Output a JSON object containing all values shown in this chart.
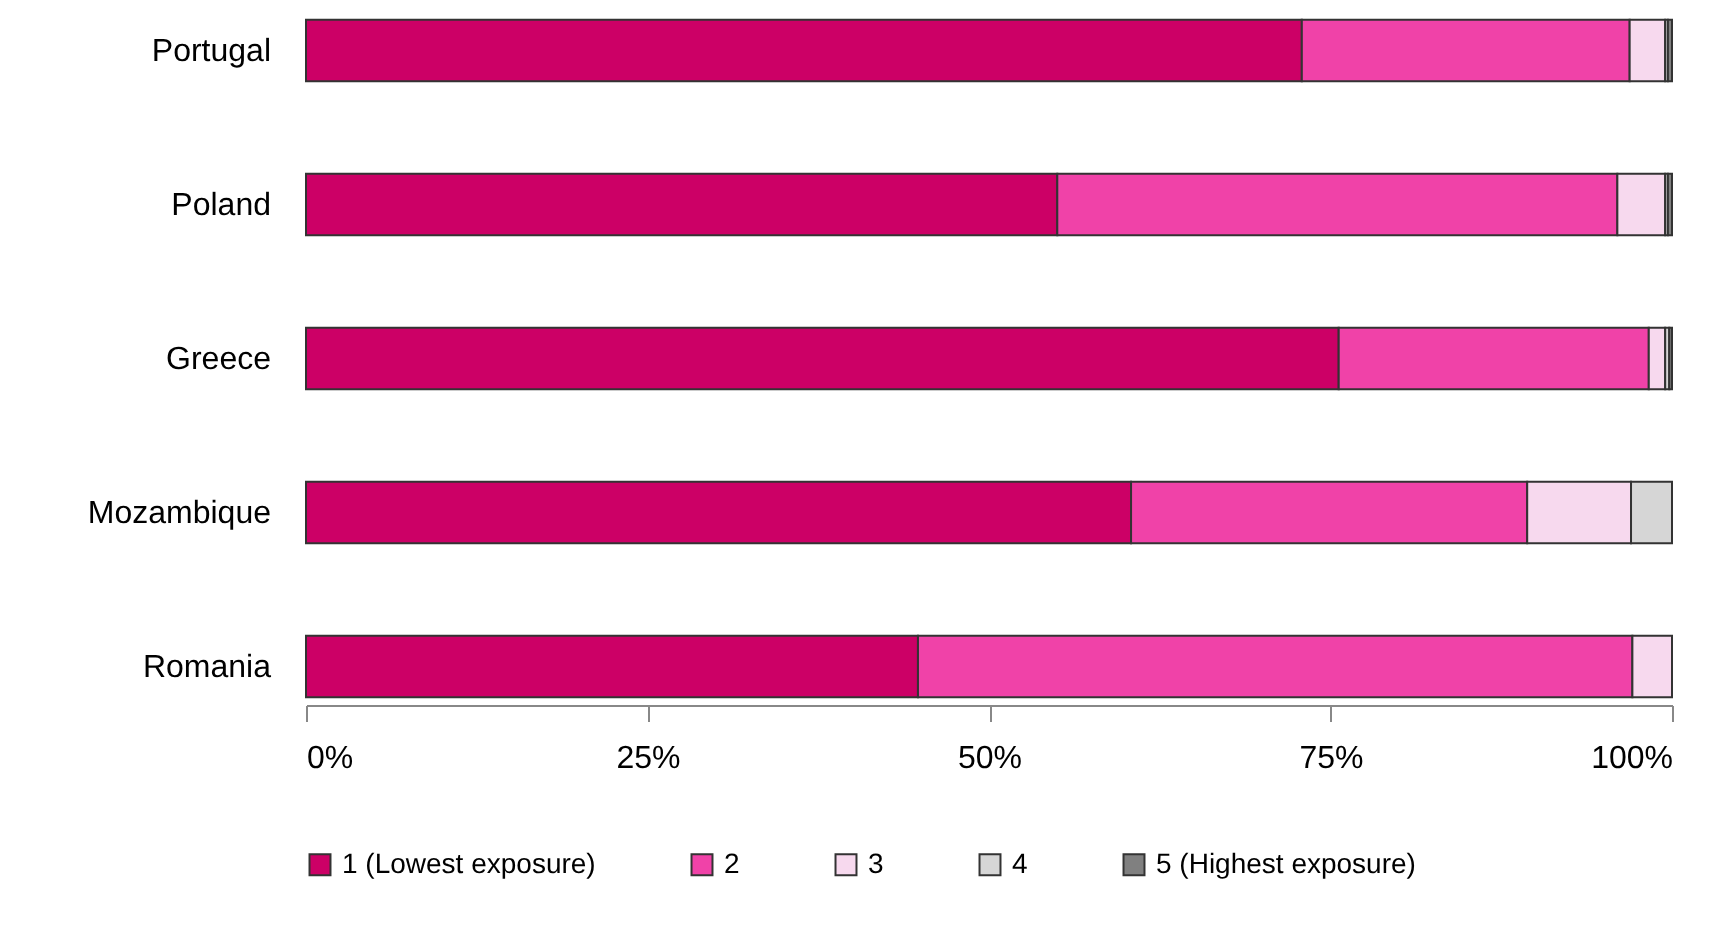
{
  "chart_data": {
    "type": "bar",
    "orientation": "horizontal",
    "stacked": true,
    "categories": [
      "Portugal",
      "Poland",
      "Greece",
      "Mozambique",
      "Romania"
    ],
    "series": [
      {
        "name": "1 (Lowest exposure)",
        "color": "#cc0066",
        "values": [
          72.9,
          55.0,
          75.6,
          60.4,
          44.8
        ]
      },
      {
        "name": "2",
        "color": "#f042a8",
        "values": [
          24.0,
          41.0,
          22.7,
          29.0,
          52.3
        ]
      },
      {
        "name": "3",
        "color": "#f7d9ee",
        "values": [
          2.6,
          3.5,
          1.2,
          7.6,
          2.9
        ]
      },
      {
        "name": "4",
        "color": "#d6d6d6",
        "values": [
          0.2,
          0.2,
          0.3,
          3.0,
          null
        ]
      },
      {
        "name": "5 (Highest exposure)",
        "color": "#808080",
        "values": [
          0.3,
          0.3,
          0.2,
          null,
          null
        ]
      }
    ],
    "xlim": [
      0,
      100
    ],
    "xticks": [
      {
        "value": 0,
        "label": "0%"
      },
      {
        "value": 25,
        "label": "25%"
      },
      {
        "value": 50,
        "label": "50%"
      },
      {
        "value": 75,
        "label": "75%"
      },
      {
        "value": 100,
        "label": "100%"
      }
    ],
    "grid": false,
    "legend": "bottom"
  }
}
